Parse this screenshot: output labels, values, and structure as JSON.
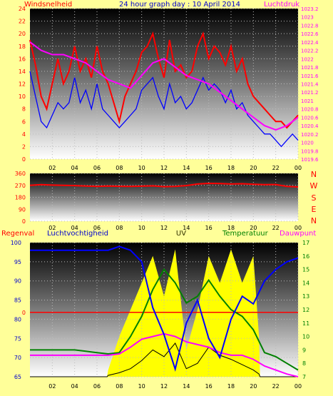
{
  "header": {
    "left_label": "Windsnelheid",
    "title": "24 hour graph day : 10 April 2014",
    "right_label": "Luchtdruk"
  },
  "lower_header": {
    "rain": "Regenval",
    "humidity": "Luchtvochtigheid",
    "uv": "UV",
    "temperature": "Temperatuur",
    "dewpoint": "Dauwpunt"
  },
  "direction_letters": [
    "N",
    "W",
    "S",
    "E",
    "N"
  ],
  "colors": {
    "background": "#ffff99",
    "wind_speed": "#ff0000",
    "wind_avg": "#0000ff",
    "pressure": "#ff00ff",
    "wind_dir": "#ff0000",
    "humidity": "#0000ff",
    "uv": "#ffff00",
    "temperature": "#008000",
    "dewpoint": "#ff00ff",
    "solar": "#000000",
    "rain": "#ff0000"
  },
  "chart_data": [
    {
      "type": "line",
      "x_ticks": [
        "02",
        "04",
        "06",
        "08",
        "10",
        "12",
        "14",
        "16",
        "18",
        "20",
        "22",
        "00"
      ],
      "xlim": [
        0,
        24
      ],
      "ylim_left": [
        0,
        24
      ],
      "y_ticks_left": [
        0,
        2,
        4,
        6,
        8,
        10,
        12,
        14,
        16,
        18,
        20,
        22,
        24
      ],
      "ylim_right": [
        1019.6,
        1023.2
      ],
      "y_ticks_right": [
        "1019.6",
        "1019.8",
        "1020",
        "1020.2",
        "1020.4",
        "1020.6",
        "1020.8",
        "1021",
        "1021.2",
        "1021.4",
        "1021.6",
        "1021.8",
        "1022",
        "1022.2",
        "1022.4",
        "1022.6",
        "1022.8",
        "1023",
        "1023.2"
      ],
      "grid": true,
      "series": [
        {
          "name": "Windsnelheid",
          "axis": "left",
          "x": [
            0.0,
            0.5,
            1.0,
            1.5,
            2.0,
            2.5,
            3.0,
            3.5,
            4.0,
            4.5,
            5.0,
            5.5,
            6.0,
            6.5,
            7.0,
            7.5,
            8.0,
            8.5,
            9.0,
            9.5,
            10.0,
            10.5,
            11.0,
            11.5,
            12.0,
            12.5,
            13.0,
            13.5,
            14.0,
            14.5,
            15.0,
            15.5,
            16.0,
            16.5,
            17.0,
            17.5,
            18.0,
            18.5,
            19.0,
            19.5,
            20.0,
            20.5,
            21.0,
            21.5,
            22.0,
            22.5,
            23.0,
            23.5,
            24.0
          ],
          "values": [
            19,
            15,
            10,
            8,
            12,
            16,
            12,
            14,
            18,
            14,
            16,
            13,
            18,
            14,
            12,
            9,
            6,
            10,
            12,
            14,
            17,
            18,
            20,
            16,
            13,
            19,
            14,
            15,
            13,
            14,
            18,
            20,
            16,
            18,
            17,
            15,
            18,
            14,
            16,
            12,
            10,
            9,
            8,
            7,
            6,
            6,
            5,
            6,
            7
          ]
        },
        {
          "name": "Wind gemiddeld",
          "axis": "left",
          "x": [
            0.0,
            0.5,
            1.0,
            1.5,
            2.0,
            2.5,
            3.0,
            3.5,
            4.0,
            4.5,
            5.0,
            5.5,
            6.0,
            6.5,
            7.0,
            7.5,
            8.0,
            8.5,
            9.0,
            9.5,
            10.0,
            10.5,
            11.0,
            11.5,
            12.0,
            12.5,
            13.0,
            13.5,
            14.0,
            14.5,
            15.0,
            15.5,
            16.0,
            16.5,
            17.0,
            17.5,
            18.0,
            18.5,
            19.0,
            19.5,
            20.0,
            20.5,
            21.0,
            21.5,
            22.0,
            22.5,
            23.0,
            23.5,
            24.0
          ],
          "values": [
            14,
            10,
            6,
            5,
            7,
            9,
            8,
            9,
            13,
            9,
            11,
            8,
            12,
            8,
            7,
            6,
            5,
            6,
            7,
            8,
            11,
            12,
            13,
            10,
            8,
            12,
            9,
            10,
            8,
            9,
            11,
            13,
            11,
            12,
            11,
            9,
            11,
            8,
            9,
            7,
            6,
            5,
            4,
            4,
            3,
            2,
            3,
            4,
            3
          ]
        },
        {
          "name": "Luchtdruk",
          "axis": "right",
          "x": [
            0,
            1,
            2,
            3,
            4,
            5,
            6,
            7,
            8,
            9,
            10,
            11,
            12,
            13,
            14,
            15,
            16,
            17,
            18,
            19,
            20,
            21,
            22,
            23,
            24
          ],
          "values": [
            1022.4,
            1022.2,
            1022.1,
            1022.1,
            1022.0,
            1021.9,
            1021.7,
            1021.5,
            1021.4,
            1021.3,
            1021.6,
            1021.9,
            1022.0,
            1021.8,
            1021.6,
            1021.5,
            1021.4,
            1021.2,
            1021.0,
            1020.8,
            1020.6,
            1020.4,
            1020.3,
            1020.4,
            1020.6
          ]
        }
      ]
    },
    {
      "type": "line",
      "x_ticks": [
        "02",
        "04",
        "06",
        "08",
        "10",
        "12",
        "14",
        "16",
        "18",
        "20",
        "22",
        "00"
      ],
      "xlim": [
        0,
        24
      ],
      "ylim": [
        0,
        360
      ],
      "y_ticks": [
        0,
        90,
        180,
        270,
        360
      ],
      "grid": true,
      "series": [
        {
          "name": "Windrichting",
          "x": [
            0,
            1,
            2,
            3,
            4,
            5,
            6,
            7,
            8,
            9,
            10,
            11,
            12,
            13,
            14,
            15,
            16,
            17,
            18,
            19,
            20,
            21,
            22,
            23,
            24
          ],
          "values": [
            270,
            275,
            272,
            270,
            268,
            265,
            262,
            265,
            263,
            262,
            264,
            266,
            260,
            262,
            268,
            280,
            285,
            283,
            280,
            282,
            278,
            275,
            276,
            262,
            258
          ]
        }
      ]
    },
    {
      "type": "area",
      "x_ticks": [
        "02",
        "04",
        "06",
        "08",
        "10",
        "12",
        "14",
        "16",
        "18",
        "20",
        "22",
        "00"
      ],
      "xlim": [
        0,
        24
      ],
      "ylim_left": [
        65,
        100
      ],
      "y_ticks_left": [
        65,
        70,
        75,
        80,
        85,
        90,
        95,
        100
      ],
      "ylim_right": [
        7,
        17
      ],
      "y_ticks_right": [
        7,
        8,
        9,
        10,
        11,
        12,
        13,
        14,
        15,
        16,
        17
      ],
      "rain_axis_label": "0",
      "grid": true,
      "series": [
        {
          "name": "Luchtvochtigheid",
          "axis": "left",
          "x": [
            0,
            1,
            2,
            3,
            4,
            5,
            6,
            7,
            8,
            9,
            10,
            11,
            12,
            13,
            14,
            15,
            16,
            17,
            18,
            19,
            20,
            21,
            22,
            23,
            24
          ],
          "values": [
            98,
            98,
            98,
            98,
            98,
            98,
            98,
            98,
            99,
            98,
            95,
            83,
            76,
            67,
            79,
            85,
            75,
            70,
            80,
            86,
            84,
            90,
            93,
            95,
            96
          ]
        },
        {
          "name": "UV",
          "axis": "right",
          "x": [
            0,
            6.9,
            7.0,
            8,
            9,
            10,
            11,
            12,
            13,
            14,
            15,
            16,
            17,
            18,
            19,
            20,
            20.5,
            20.6,
            24
          ],
          "values": [
            7,
            7,
            7.5,
            10,
            12,
            14,
            16,
            13,
            16.5,
            9,
            12,
            16,
            14,
            16.5,
            14,
            16,
            10,
            7,
            7
          ]
        },
        {
          "name": "Temperatuur",
          "axis": "right",
          "x": [
            0,
            1,
            2,
            3,
            4,
            5,
            6,
            7,
            8,
            9,
            10,
            11,
            12,
            13,
            14,
            15,
            16,
            17,
            18,
            19,
            20,
            21,
            22,
            23,
            24
          ],
          "values": [
            9.0,
            9.0,
            9.0,
            9.0,
            9.0,
            8.9,
            8.8,
            8.7,
            8.8,
            10.0,
            11.5,
            13.5,
            15.0,
            14.0,
            12.5,
            13.0,
            14.2,
            13.0,
            12.0,
            11.5,
            10.5,
            8.8,
            8.5,
            8.0,
            7.5
          ]
        },
        {
          "name": "Dauwpunt",
          "axis": "right",
          "x": [
            0,
            1,
            2,
            3,
            4,
            5,
            6,
            7,
            8,
            9,
            10,
            11,
            12,
            13,
            14,
            15,
            16,
            17,
            18,
            19,
            20,
            21,
            22,
            23,
            24
          ],
          "values": [
            8.6,
            8.6,
            8.6,
            8.6,
            8.6,
            8.6,
            8.6,
            8.6,
            8.7,
            9.2,
            9.8,
            10.0,
            10.2,
            10.0,
            9.6,
            9.4,
            9.2,
            8.8,
            8.6,
            8.6,
            8.3,
            7.8,
            7.5,
            7.2,
            7.0
          ]
        },
        {
          "name": "Zonnestraling",
          "axis": "right",
          "x": [
            0,
            6.9,
            7.0,
            8,
            9,
            10,
            11,
            12,
            13,
            14,
            15,
            16,
            17,
            18,
            19,
            20,
            20.5,
            20.6,
            24
          ],
          "values": [
            7,
            7,
            7.1,
            7.3,
            7.6,
            8.2,
            9.0,
            8.5,
            9.5,
            7.6,
            8.0,
            9.2,
            8.6,
            8.3,
            7.9,
            7.5,
            7.2,
            7,
            7
          ]
        }
      ]
    }
  ]
}
